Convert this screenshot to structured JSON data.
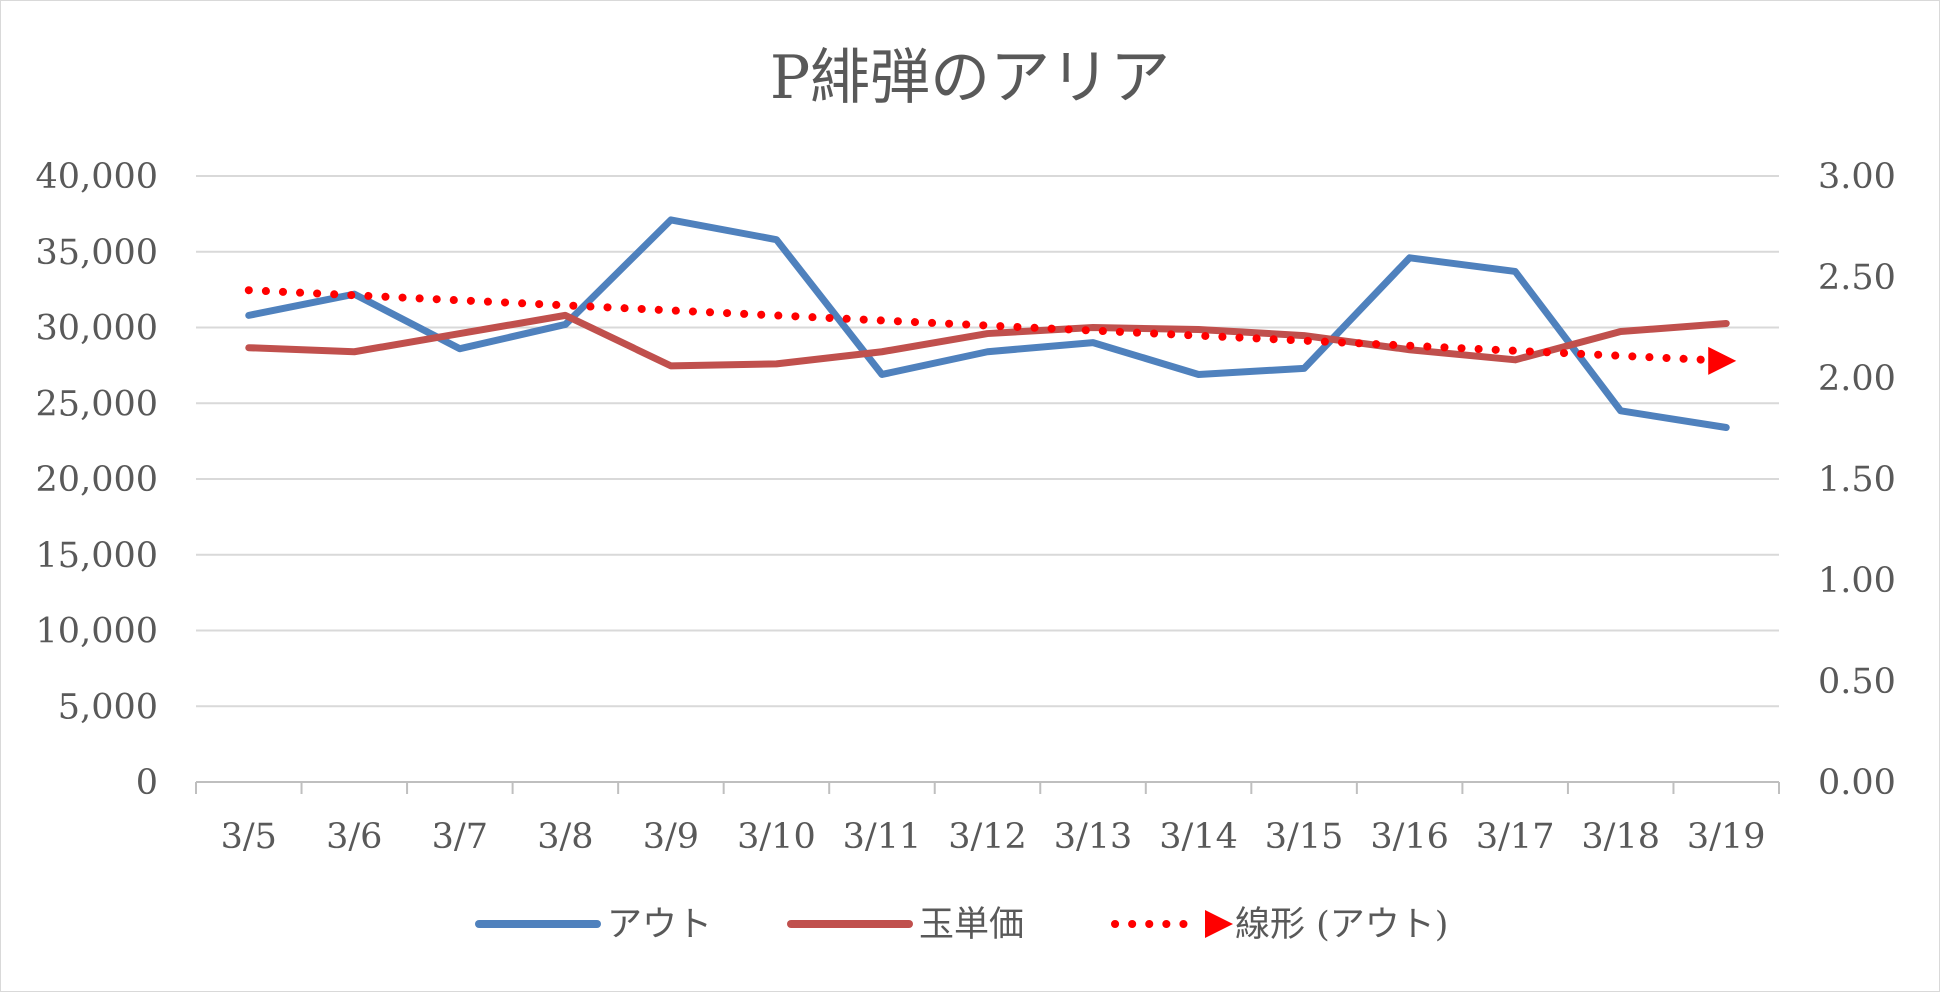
{
  "chart_data": {
    "type": "line",
    "title": "P緋弾のアリア",
    "categories": [
      "3/5",
      "3/6",
      "3/7",
      "3/8",
      "3/9",
      "3/10",
      "3/11",
      "3/12",
      "3/13",
      "3/14",
      "3/15",
      "3/16",
      "3/17",
      "3/18",
      "3/19"
    ],
    "y_left": {
      "min": 0,
      "max": 40000,
      "step": 5000,
      "tick_labels": [
        "0",
        "5,000",
        "10,000",
        "15,000",
        "20,000",
        "25,000",
        "30,000",
        "35,000",
        "40,000"
      ]
    },
    "y_right": {
      "min": 0,
      "max": 3.0,
      "step": 0.5,
      "tick_labels": [
        "0.00",
        "0.50",
        "1.00",
        "1.50",
        "2.00",
        "2.50",
        "3.00"
      ]
    },
    "grid": true,
    "legend_position": "bottom",
    "series": [
      {
        "name": "アウト",
        "axis": "left",
        "color": "#4f81bd",
        "style": "solid",
        "values": [
          30800,
          32200,
          28600,
          30200,
          37100,
          35800,
          26900,
          28400,
          29000,
          26900,
          27300,
          34600,
          33700,
          24500,
          23400
        ]
      },
      {
        "name": "玉単価",
        "axis": "right",
        "color": "#c0504d",
        "style": "solid",
        "values": [
          2.15,
          2.13,
          2.22,
          2.31,
          2.06,
          2.07,
          2.13,
          2.22,
          2.25,
          2.24,
          2.21,
          2.14,
          2.09,
          2.23,
          2.27
        ]
      },
      {
        "name": "線形 (アウト)",
        "axis": "left",
        "color": "#ff0000",
        "style": "dotted-trendline",
        "values": [
          32461,
          32128,
          31795,
          31462,
          31129,
          30796,
          30463,
          30130,
          29797,
          29464,
          29131,
          28798,
          28465,
          28132,
          27799
        ]
      }
    ]
  }
}
